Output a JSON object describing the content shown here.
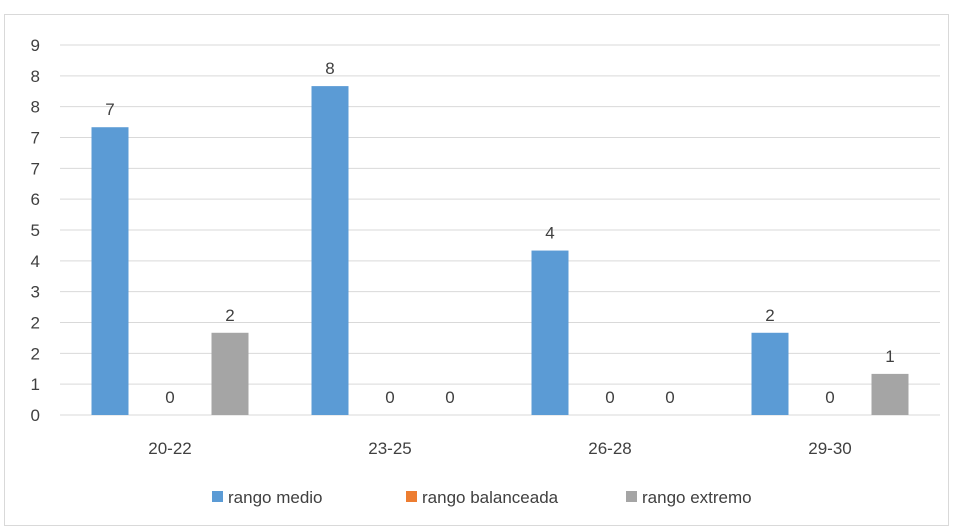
{
  "chart_data": {
    "type": "bar",
    "categories": [
      "20-22",
      "23-25",
      "26-28",
      "29-30"
    ],
    "series": [
      {
        "name": "rango medio",
        "values": [
          7,
          8,
          4,
          2
        ],
        "color": "#5b9bd5"
      },
      {
        "name": "rango balanceada",
        "values": [
          0,
          0,
          0,
          0
        ],
        "color": "#ed7d31"
      },
      {
        "name": "rango extremo",
        "values": [
          2,
          0,
          0,
          1
        ],
        "color": "#a5a5a5"
      }
    ],
    "y_ticks": [
      "0",
      "1",
      "2",
      "2",
      "3",
      "4",
      "5",
      "6",
      "7",
      "7",
      "8",
      "8",
      "9"
    ],
    "data_labels": [
      [
        "7",
        "8",
        "4",
        "2"
      ],
      [
        "0",
        "0",
        "0",
        "0"
      ],
      [
        "2",
        "0",
        "0",
        "1"
      ]
    ],
    "ylim": [
      0,
      9
    ],
    "grid": true,
    "gridline_color": "#d9d9d9",
    "legend_position": "bottom"
  }
}
